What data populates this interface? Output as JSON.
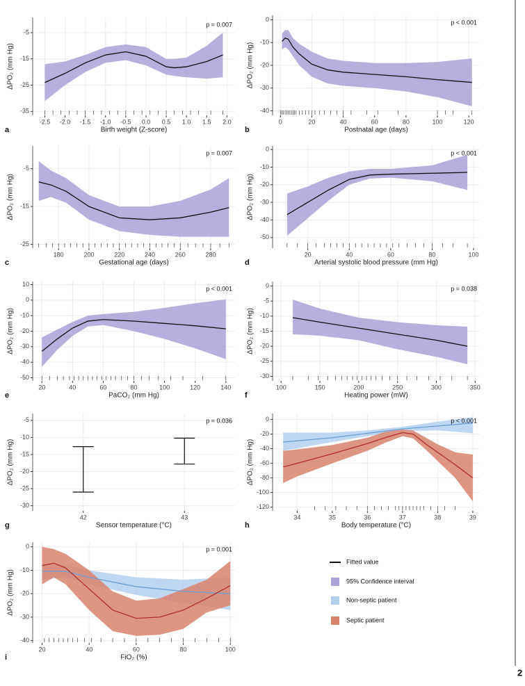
{
  "chart_data": [
    {
      "type": "line",
      "panel": "a",
      "annotation": "p = 0.007",
      "xlabel": "Birth weight (Z-score)",
      "ylabel": "ΔPO₂ (mm Hg)",
      "xlim": [
        -2.8,
        2.2
      ],
      "ylim": [
        -36.5,
        0.8
      ],
      "xticks": [
        -2.5,
        {
          "value": -2,
          "label": "-2.0"
        },
        -1.5,
        {
          "value": -1,
          "label": "-1.0"
        },
        -0.5,
        {
          "value": 0,
          "label": "0.0"
        },
        0.5,
        {
          "value": 1,
          "label": "1.0"
        },
        1.5,
        {
          "value": 2,
          "label": "2.0"
        }
      ],
      "yticks": [
        -5,
        -15,
        -25,
        -35
      ],
      "grid": true,
      "series": [
        {
          "color": "#111111",
          "band_color": "#a9a3d6",
          "x": [
            -2.5,
            -2,
            -1.5,
            -1,
            -0.5,
            0,
            0.5,
            0.7,
            1,
            1.5,
            1.9
          ],
          "values": [
            -24,
            -20.5,
            -16.5,
            -13.5,
            -12.3,
            -14,
            -18,
            -18.4,
            -18,
            -16,
            -13.5
          ],
          "lower": [
            -31,
            -25,
            -20,
            -16.5,
            -15.5,
            -17.5,
            -21,
            -21.5,
            -22,
            -22.5,
            -22
          ],
          "upper": [
            -17,
            -16,
            -13.5,
            -10.5,
            -9.5,
            -10.5,
            -15,
            -15,
            -14.5,
            -10,
            -5
          ]
        }
      ],
      "rug": [
        -2.5,
        -2.3,
        -2.1,
        -1.9,
        -1.7,
        -1.5,
        -1.3,
        -1.1,
        -0.9,
        -0.7,
        -0.5,
        -0.3,
        -0.1,
        0.1,
        0.3,
        0.5,
        0.7,
        0.9,
        1.1,
        1.3,
        1.6,
        1.9
      ]
    },
    {
      "type": "line",
      "panel": "b",
      "annotation": "p < 0.001",
      "xlabel": "Postnatal age (days)",
      "ylabel": "ΔPO₂ (mm Hg)",
      "xlim": [
        -5,
        127
      ],
      "ylim": [
        -42,
        2
      ],
      "xticks": [
        0,
        20,
        40,
        60,
        80,
        100,
        120
      ],
      "yticks": [
        0,
        -10,
        -20,
        -30,
        -40
      ],
      "grid": true,
      "series": [
        {
          "color": "#111111",
          "band_color": "#a9a3d6",
          "x": [
            1,
            3,
            5,
            8,
            12,
            20,
            30,
            40,
            60,
            80,
            100,
            122
          ],
          "values": [
            -9.5,
            -8,
            -8.5,
            -12,
            -15,
            -19.5,
            -22,
            -23,
            -24,
            -25,
            -26.3,
            -27.5
          ],
          "lower": [
            -13,
            -12,
            -13,
            -16,
            -20,
            -25,
            -28,
            -29,
            -30,
            -31.5,
            -34,
            -38
          ],
          "upper": [
            -6,
            -4.5,
            -4.5,
            -8,
            -10.5,
            -14,
            -17,
            -18,
            -19,
            -19,
            -18.5,
            -17
          ]
        }
      ],
      "rug": [
        0,
        1,
        2,
        3,
        4,
        5,
        6,
        7,
        8,
        9,
        10,
        12,
        14,
        16,
        18,
        20,
        22,
        25,
        28,
        32,
        36,
        40,
        45,
        55,
        62,
        75,
        100,
        105,
        110,
        122
      ]
    },
    {
      "type": "line",
      "panel": "c",
      "annotation": "p = 0.007",
      "xlabel": "Gestational age (days)",
      "ylabel": "ΔPO₂ (mm Hg)",
      "xlim": [
        163,
        296
      ],
      "ylim": [
        -26,
        1
      ],
      "xticks": [
        180,
        200,
        220,
        240,
        260,
        280
      ],
      "yticks": [
        -5,
        -15,
        -25
      ],
      "grid": true,
      "series": [
        {
          "color": "#111111",
          "band_color": "#a9a3d6",
          "x": [
            167,
            175,
            185,
            200,
            220,
            240,
            260,
            280,
            292
          ],
          "values": [
            -8.5,
            -9.3,
            -11,
            -15,
            -18,
            -18.5,
            -18,
            -16.5,
            -15.3
          ],
          "lower": [
            -13.5,
            -12.5,
            -14,
            -18.5,
            -21.5,
            -22.5,
            -23,
            -23,
            -23
          ],
          "upper": [
            -3,
            -5.5,
            -7.5,
            -12,
            -15,
            -15,
            -13.5,
            -10.5,
            -7.5
          ]
        }
      ],
      "rug": [
        167,
        172,
        176,
        180,
        184,
        188,
        192,
        196,
        200,
        204,
        208,
        212,
        216,
        220,
        224,
        228,
        232,
        236,
        240,
        244,
        248,
        252,
        256,
        260,
        265,
        270,
        275,
        280,
        286,
        292
      ]
    },
    {
      "type": "line",
      "panel": "d",
      "annotation": "p < 0.001",
      "xlabel": "Arterial systolic blood pressure (mm Hg)",
      "ylabel": "ΔPO₂ (mm Hg)",
      "xlim": [
        3,
        103
      ],
      "ylim": [
        -56,
        2
      ],
      "xticks": [
        20,
        40,
        60,
        80,
        100
      ],
      "yticks": [
        0,
        -10,
        -20,
        -30,
        -40,
        -50
      ],
      "grid": true,
      "series": [
        {
          "color": "#111111",
          "band_color": "#a9a3d6",
          "x": [
            10,
            20,
            30,
            40,
            50,
            60,
            80,
            97
          ],
          "values": [
            -37,
            -30,
            -23,
            -17,
            -14.5,
            -14,
            -13.5,
            -13
          ],
          "lower": [
            -49,
            -39,
            -29,
            -20,
            -16.5,
            -16,
            -18,
            -23
          ],
          "upper": [
            -25,
            -21,
            -16,
            -12.5,
            -11,
            -11,
            -9,
            -3
          ]
        }
      ],
      "rug": [
        10,
        15,
        20,
        24,
        28,
        31,
        34,
        37,
        40,
        43,
        46,
        49,
        52,
        55,
        58,
        61,
        64,
        68,
        72,
        76,
        80,
        85,
        90,
        97
      ]
    },
    {
      "type": "line",
      "panel": "e",
      "annotation": "p < 0.001",
      "xlabel": "PaCO₂ (mm Hg)",
      "ylabel": "ΔPO₂ (mm Hg)",
      "xlim": [
        14,
        146
      ],
      "ylim": [
        -52,
        12
      ],
      "xticks": [
        20,
        40,
        60,
        80,
        100,
        120,
        140
      ],
      "yticks": [
        10,
        0,
        -10,
        -20,
        -30,
        -40,
        -50
      ],
      "grid": true,
      "series": [
        {
          "color": "#111111",
          "band_color": "#a9a3d6",
          "x": [
            20,
            30,
            40,
            50,
            60,
            80,
            100,
            120,
            140
          ],
          "values": [
            -33,
            -25,
            -18,
            -13.5,
            -12.5,
            -13.5,
            -15,
            -16.5,
            -18.5
          ],
          "lower": [
            -43,
            -32,
            -23,
            -17,
            -16,
            -20,
            -25,
            -31,
            -38
          ],
          "upper": [
            -24,
            -19,
            -14,
            -10,
            -9,
            -7.5,
            -5,
            -2,
            0.5
          ]
        }
      ],
      "rug": [
        20,
        25,
        30,
        34,
        38,
        41,
        44,
        47,
        50,
        53,
        56,
        59,
        62,
        65,
        68,
        72,
        76,
        80,
        85,
        90,
        96,
        104,
        112,
        125,
        140
      ]
    },
    {
      "type": "line",
      "panel": "f",
      "annotation": "p = 0.038",
      "xlabel": "Heating power (mW)",
      "ylabel": "ΔPO₂ (mm Hg)",
      "xlim": [
        89,
        356
      ],
      "ylim": [
        -31.5,
        1.5
      ],
      "xticks": [
        100,
        150,
        200,
        250,
        300,
        350
      ],
      "yticks": [
        0,
        -5,
        -10,
        -15,
        -20,
        -25,
        -30
      ],
      "grid": true,
      "series": [
        {
          "color": "#111111",
          "band_color": "#a9a3d6",
          "x": [
            115,
            150,
            200,
            250,
            300,
            340
          ],
          "values": [
            -10.5,
            -12,
            -14,
            -16,
            -18,
            -20
          ],
          "lower": [
            -16,
            -16.5,
            -18,
            -21,
            -23.5,
            -26
          ],
          "upper": [
            -4.5,
            -7.5,
            -10.5,
            -12,
            -13,
            -13.5
          ]
        }
      ],
      "rug": [
        115,
        135,
        148,
        160,
        170,
        178,
        185,
        192,
        198,
        204,
        210,
        216,
        222,
        230,
        240,
        250,
        262,
        275,
        290,
        305,
        320,
        340
      ]
    },
    {
      "type": "errorbar",
      "panel": "g",
      "annotation": "p = 0.036",
      "xlabel": "Sensor temperature (°C)",
      "ylabel": "ΔPO₂ (mm Hg)",
      "categories": [
        "42",
        "43"
      ],
      "lower": [
        -26,
        -17.8
      ],
      "upper": [
        -12.7,
        -10.2
      ],
      "color": "#111111",
      "ylim": [
        -31.5,
        -3
      ],
      "yticks": [
        -5,
        -10,
        -15,
        -20,
        -25,
        -30
      ],
      "grid": true
    },
    {
      "type": "line",
      "panel": "h",
      "annotation": "p < 0.001",
      "xlabel": "Body temperature (°C)",
      "ylabel": "ΔPO₂ (mm Hg)",
      "xlim": [
        33.3,
        39.2
      ],
      "ylim": [
        -125,
        8
      ],
      "xticks": [
        34,
        35,
        36,
        37,
        38,
        39
      ],
      "yticks": [
        0,
        -20,
        -40,
        -60,
        -80,
        -100,
        -120
      ],
      "grid": true,
      "series": [
        {
          "color": "#6e9fd4",
          "band_color": "#b5d0ee",
          "x": [
            33.6,
            35,
            36,
            37,
            38,
            39
          ],
          "values": [
            -31,
            -25,
            -19,
            -13,
            -9,
            -5
          ],
          "lower": [
            -43,
            -31,
            -23,
            -16,
            -15,
            -19
          ],
          "upper": [
            -18,
            -18,
            -15,
            -10,
            -3,
            3
          ]
        },
        {
          "color": "#b3312b",
          "band_color": "#d9826d",
          "x": [
            33.6,
            34,
            35,
            36,
            36.5,
            37,
            37.3,
            37.7,
            38,
            38.5,
            39
          ],
          "values": [
            -65,
            -60,
            -47,
            -33,
            -25,
            -18,
            -20,
            -35,
            -45,
            -62,
            -80
          ],
          "lower": [
            -87,
            -78,
            -60,
            -43,
            -32,
            -23,
            -26,
            -43,
            -57,
            -80,
            -112
          ],
          "upper": [
            -43,
            -41,
            -35,
            -25,
            -17,
            -14,
            -15,
            -26,
            -34,
            -45,
            -48
          ]
        }
      ],
      "rug": [
        34.5,
        34.8,
        35.1,
        35.4,
        35.7,
        36,
        36.2,
        36.4,
        36.6,
        36.8,
        36.9,
        37,
        37.1,
        37.2,
        37.3,
        37.4,
        37.5,
        37.6,
        37.8,
        38,
        38.2,
        38.5
      ]
    },
    {
      "type": "line",
      "panel": "i",
      "annotation": "p = 0.001",
      "xlabel": "FiO₂ (%)",
      "ylabel": "ΔPO₂ (mm Hg)",
      "xlim": [
        16,
        102
      ],
      "ylim": [
        -41,
        2
      ],
      "xticks": [
        20,
        40,
        60,
        80,
        100
      ],
      "yticks": [
        0,
        -10,
        -20,
        -30,
        -40
      ],
      "grid": true,
      "series": [
        {
          "color": "#6e9fd4",
          "band_color": "#b5d0ee",
          "x": [
            20,
            30,
            40,
            60,
            80,
            100
          ],
          "values": [
            -10.5,
            -10.5,
            -13,
            -17,
            -19,
            -20
          ],
          "lower": [
            -14,
            -13,
            -16,
            -20.5,
            -24,
            -27
          ],
          "upper": [
            -7,
            -8,
            -10,
            -13,
            -14,
            -13
          ]
        },
        {
          "color": "#b3312b",
          "band_color": "#d9826d",
          "x": [
            20,
            25,
            30,
            40,
            50,
            60,
            70,
            80,
            90,
            100
          ],
          "values": [
            -8,
            -7,
            -9,
            -18,
            -27,
            -30.5,
            -30,
            -27,
            -22,
            -16.5
          ],
          "lower": [
            -16,
            -13,
            -16,
            -27,
            -36,
            -38,
            -37.5,
            -35,
            -28,
            -25
          ],
          "upper": [
            0,
            -1,
            -3,
            -10,
            -19,
            -23,
            -22,
            -18,
            -14,
            -6
          ]
        }
      ],
      "rug": [
        21,
        23,
        25,
        27,
        29,
        31,
        33,
        35,
        38,
        41,
        45,
        50,
        55,
        60,
        65,
        70,
        75,
        80,
        85,
        90,
        95,
        100
      ]
    }
  ],
  "legend": [
    {
      "label": "Fitted value",
      "kind": "line",
      "color": "#111111"
    },
    {
      "label": "95% Confidence interval",
      "kind": "box",
      "color": "#a9a3d6"
    },
    {
      "label": "Non-septic patient",
      "kind": "box",
      "color": "#b5d0ee"
    },
    {
      "label": "Septic patient",
      "kind": "box",
      "color": "#d9826d"
    }
  ],
  "page_number": "2"
}
